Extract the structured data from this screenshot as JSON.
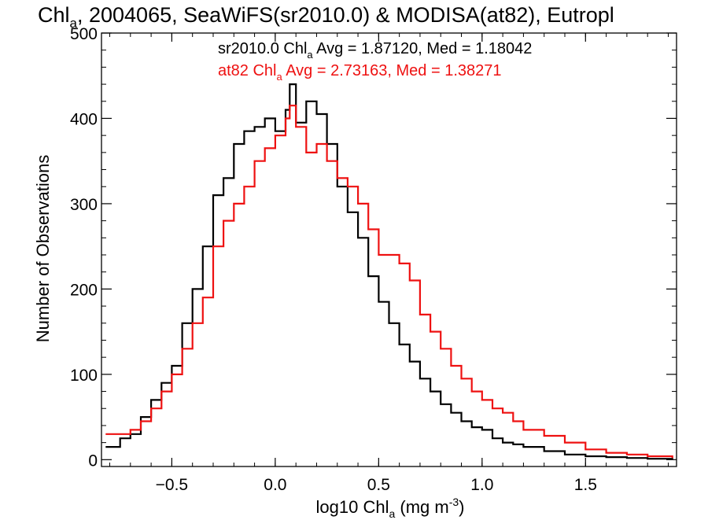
{
  "chart_data": {
    "type": "line",
    "title": {
      "main": "Chl",
      "main_sub": "a",
      "rest": ", 2004065, SeaWiFS(sr2010.0) & MODISA(at82), Eutropl"
    },
    "xlabel": {
      "prefix": "log10 Chl",
      "sub": "a",
      "mid": " (mg m",
      "sup": "-3",
      "suffix": ")"
    },
    "ylabel": "Number of Observations",
    "xlim": [
      -0.84,
      1.94
    ],
    "ylim": [
      -8,
      500
    ],
    "x_ticks": [
      {
        "value": -0.5,
        "label": "−0.5"
      },
      {
        "value": 0.0,
        "label": "0.0"
      },
      {
        "value": 0.5,
        "label": "0.5"
      },
      {
        "value": 1.0,
        "label": "1.0"
      },
      {
        "value": 1.5,
        "label": "1.5"
      }
    ],
    "y_ticks": [
      {
        "value": 0,
        "label": "0"
      },
      {
        "value": 100,
        "label": "100"
      },
      {
        "value": 200,
        "label": "200"
      },
      {
        "value": 300,
        "label": "300"
      },
      {
        "value": 400,
        "label": "400"
      },
      {
        "value": 500,
        "label": "500"
      }
    ],
    "grid": false,
    "legend_position": "top-center",
    "series": [
      {
        "key": "sr2010",
        "color": "#000000",
        "label_prefix": "sr2010.0 Chl",
        "label_sub": "a",
        "label_suffix": " Avg = 1.87120, Med = 1.18042",
        "x": [
          -0.82,
          -0.75,
          -0.7,
          -0.65,
          -0.6,
          -0.55,
          -0.5,
          -0.45,
          -0.4,
          -0.35,
          -0.3,
          -0.25,
          -0.2,
          -0.15,
          -0.1,
          -0.05,
          0.0,
          0.05,
          0.07,
          0.1,
          0.15,
          0.2,
          0.25,
          0.3,
          0.35,
          0.4,
          0.45,
          0.5,
          0.55,
          0.6,
          0.65,
          0.7,
          0.75,
          0.8,
          0.85,
          0.9,
          0.95,
          1.0,
          1.05,
          1.1,
          1.15,
          1.2,
          1.3,
          1.4,
          1.5,
          1.6,
          1.7,
          1.8,
          1.92
        ],
        "y": [
          15,
          25,
          30,
          50,
          70,
          90,
          110,
          160,
          200,
          250,
          310,
          330,
          370,
          385,
          390,
          400,
          385,
          410,
          440,
          395,
          420,
          405,
          370,
          320,
          290,
          260,
          215,
          185,
          160,
          135,
          115,
          95,
          80,
          65,
          55,
          45,
          38,
          35,
          25,
          20,
          18,
          15,
          10,
          6,
          4,
          3,
          2,
          1,
          0
        ]
      },
      {
        "key": "at82",
        "color": "#ee1111",
        "label_prefix": "at82 Chl",
        "label_sub": "a",
        "label_suffix": " Avg = 2.73163, Med = 1.38271",
        "x": [
          -0.82,
          -0.75,
          -0.7,
          -0.65,
          -0.6,
          -0.55,
          -0.5,
          -0.45,
          -0.4,
          -0.35,
          -0.3,
          -0.25,
          -0.2,
          -0.15,
          -0.1,
          -0.05,
          0.0,
          0.05,
          0.07,
          0.1,
          0.15,
          0.2,
          0.25,
          0.3,
          0.35,
          0.4,
          0.45,
          0.5,
          0.55,
          0.6,
          0.65,
          0.7,
          0.75,
          0.8,
          0.85,
          0.9,
          0.95,
          1.0,
          1.05,
          1.1,
          1.15,
          1.2,
          1.3,
          1.4,
          1.5,
          1.6,
          1.7,
          1.8,
          1.92
        ],
        "y": [
          30,
          30,
          35,
          45,
          60,
          80,
          100,
          130,
          160,
          190,
          250,
          280,
          300,
          320,
          350,
          365,
          380,
          400,
          415,
          390,
          360,
          370,
          350,
          330,
          320,
          300,
          270,
          240,
          240,
          230,
          210,
          170,
          150,
          130,
          110,
          95,
          80,
          70,
          60,
          55,
          45,
          35,
          28,
          20,
          12,
          8,
          6,
          4,
          2
        ]
      }
    ]
  }
}
